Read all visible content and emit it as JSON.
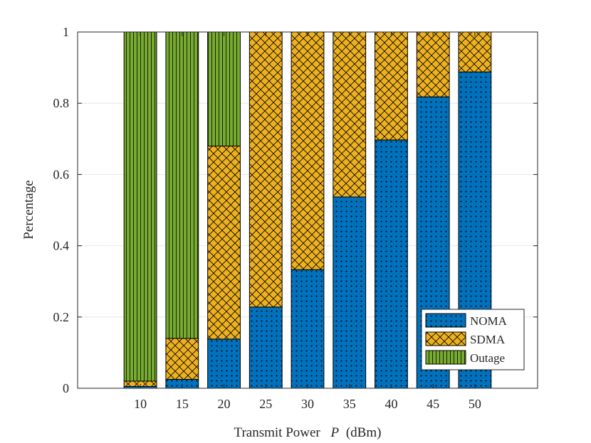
{
  "chart_data": {
    "type": "bar",
    "stacked": true,
    "title": "",
    "xlabel": "Transmit Power",
    "xlabel_var": "P",
    "xlabel_unit": "(dBm)",
    "ylabel": "Percentage",
    "ylim": [
      0,
      1
    ],
    "yticks": [
      0,
      0.2,
      0.4,
      0.6,
      0.8,
      1
    ],
    "ytick_labels": [
      "0",
      "0.2",
      "0.4",
      "0.6",
      "0.8",
      "1"
    ],
    "categories": [
      "10",
      "15",
      "20",
      "25",
      "30",
      "35",
      "40",
      "45",
      "50"
    ],
    "series": [
      {
        "name": "NOMA",
        "color": "#0072BD",
        "pattern": "dots",
        "values": [
          0.005,
          0.025,
          0.138,
          0.228,
          0.333,
          0.537,
          0.697,
          0.818,
          0.888
        ]
      },
      {
        "name": "SDMA",
        "color": "#EDB120",
        "pattern": "crosshatch",
        "values": [
          0.015,
          0.115,
          0.542,
          0.772,
          0.667,
          0.463,
          0.303,
          0.182,
          0.112
        ]
      },
      {
        "name": "Outage",
        "color": "#77AC30",
        "pattern": "vertical",
        "values": [
          0.98,
          0.86,
          0.32,
          0,
          0,
          0,
          0,
          0,
          0
        ]
      }
    ],
    "legend_position": "bottom-right",
    "grid": "y"
  }
}
